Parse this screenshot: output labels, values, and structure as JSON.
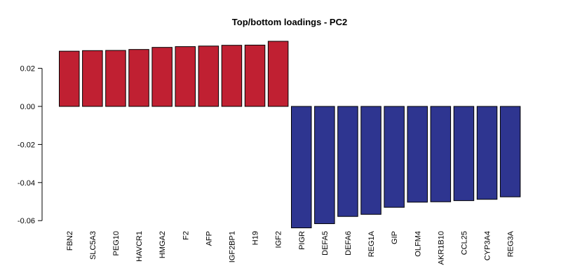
{
  "chart_data": {
    "type": "bar",
    "title": "Top/bottom loadings - PC2",
    "xlabel": "",
    "ylabel": "",
    "ylim": [
      -0.065,
      0.035
    ],
    "yticks": [
      0.02,
      0.0,
      -0.02,
      -0.04,
      -0.06
    ],
    "ytick_labels": [
      "0.02",
      "0.00",
      "-0.02",
      "-0.04",
      "-0.06"
    ],
    "categories": [
      "FBN2",
      "SLC5A3",
      "PEG10",
      "HAVCR1",
      "HMGA2",
      "F2",
      "AFP",
      "IGF2BP1",
      "H19",
      "IGF2",
      "PIGR",
      "DEFA5",
      "DEFA6",
      "REG1A",
      "GIP",
      "OLFM4",
      "AKR1B10",
      "CCL25",
      "CYP3A4",
      "REG3A"
    ],
    "values": [
      0.029,
      0.0293,
      0.0294,
      0.0299,
      0.031,
      0.0314,
      0.0317,
      0.0321,
      0.0322,
      0.0342,
      -0.0638,
      -0.0616,
      -0.0578,
      -0.0567,
      -0.053,
      -0.0503,
      -0.0501,
      -0.0495,
      -0.0488,
      -0.0475
    ],
    "colors": {
      "positive": "#c02032",
      "negative": "#2e3590",
      "border": "#000000"
    },
    "grid": false,
    "legend": "none"
  }
}
